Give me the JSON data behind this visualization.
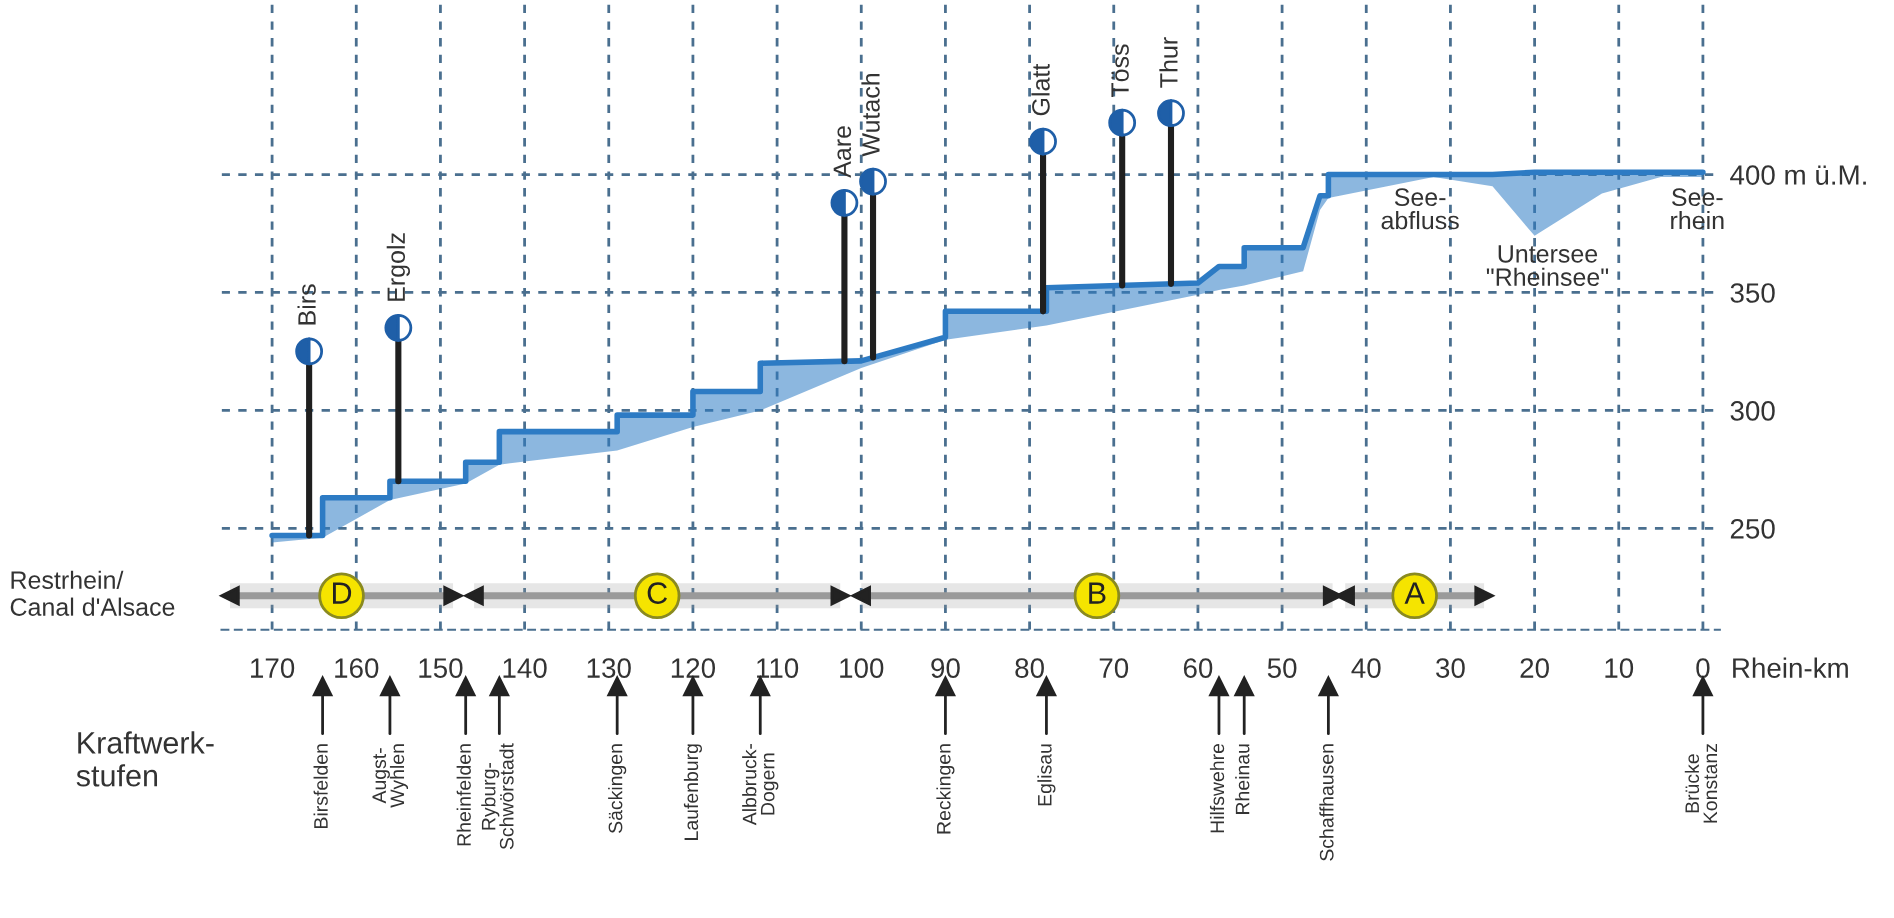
{
  "chart_data": {
    "type": "line",
    "x": [
      170,
      164,
      164,
      156,
      156,
      147,
      147,
      143,
      143,
      129,
      129,
      120,
      120,
      112,
      112,
      100,
      90,
      90,
      78,
      78,
      60,
      57.5,
      54.5,
      54.5,
      47.5,
      45.5,
      44.5,
      44.5,
      32,
      25,
      20,
      12,
      5,
      0
    ],
    "series": [
      {
        "color": "#2d7bc4",
        "values": [
          247,
          247,
          263,
          263,
          270,
          270,
          278,
          278,
          291,
          291,
          298,
          298,
          308,
          308,
          320,
          321,
          331,
          342,
          342,
          352,
          354,
          361,
          361,
          369,
          369,
          391,
          391,
          400,
          400,
          400,
          401,
          401,
          401,
          401
        ],
        "lower": [
          244,
          246,
          246,
          262,
          262,
          269,
          269,
          277,
          277,
          283,
          283,
          293,
          293,
          300,
          300,
          318,
          330,
          330,
          336,
          336,
          349,
          351,
          353,
          353,
          359,
          385,
          390,
          390,
          399,
          395,
          374,
          392,
          399,
          399
        ],
        "upper": [
          247,
          247,
          263,
          263,
          270,
          270,
          278,
          278,
          291,
          291,
          298,
          298,
          308,
          308,
          320,
          321,
          331,
          342,
          342,
          352,
          354,
          361,
          361,
          369,
          369,
          391,
          391,
          400,
          400,
          400,
          401,
          401,
          401,
          401
        ]
      },
      {
        "type": "lollipop",
        "name": "Birs",
        "color": "#1f5fa8",
        "marker": "circle",
        "x": [
          165.6
        ],
        "values": [
          325
        ]
      },
      {
        "type": "lollipop",
        "name": "Ergolz",
        "color": "#1f5fa8",
        "marker": "circle",
        "x": [
          155
        ],
        "values": [
          335
        ]
      },
      {
        "type": "lollipop",
        "name": "Aare",
        "color": "#1f5fa8",
        "marker": "circle",
        "x": [
          102
        ],
        "values": [
          388
        ]
      },
      {
        "type": "lollipop",
        "name": "Wutach",
        "color": "#1f5fa8",
        "marker": "circle",
        "x": [
          98.6
        ],
        "values": [
          397
        ]
      },
      {
        "type": "lollipop",
        "name": "Glatt",
        "color": "#1f5fa8",
        "marker": "circle",
        "x": [
          78.4
        ],
        "values": [
          414
        ]
      },
      {
        "type": "lollipop",
        "name": "Töss",
        "color": "#1f5fa8",
        "marker": "circle",
        "x": [
          69
        ],
        "values": [
          422
        ]
      },
      {
        "type": "lollipop",
        "name": "Thur",
        "color": "#1f5fa8",
        "marker": "circle",
        "x": [
          63.2
        ],
        "values": [
          426
        ]
      }
    ],
    "xlabel": "Rhein-km",
    "xlim": [
      176,
      -2
    ],
    "xticks": [
      170,
      160,
      150,
      140,
      130,
      120,
      110,
      100,
      90,
      80,
      70,
      60,
      50,
      40,
      30,
      20,
      10,
      0
    ],
    "ylim": [
      207,
      474
    ],
    "yticks": [
      250,
      300,
      350,
      {
        "value": 400,
        "label": "400 m ü.M."
      }
    ],
    "grid": true,
    "bands": [
      {
        "axis": "x",
        "from": 175,
        "to": 148.5,
        "label": "D",
        "color": "#9a9a9a"
      },
      {
        "axis": "x",
        "from": 146,
        "to": 102.5,
        "label": "C",
        "color": "#9a9a9a"
      },
      {
        "axis": "x",
        "from": 100,
        "to": 44,
        "label": "B",
        "color": "#9a9a9a"
      },
      {
        "axis": "x",
        "from": 42.5,
        "to": 26,
        "label": "A",
        "color": "#9a9a9a"
      }
    ],
    "annotations": [
      "Restrhein/\nCanal d'Alsace",
      "Kraftwerk-\nstufen",
      "See-\nabfluss",
      "Untersee\n\"Rheinsee\"",
      "See-\nrhein",
      {
        "text": "Birsfelden",
        "x": 164
      },
      {
        "text": "Augst-\nWyhlen",
        "x": 156
      },
      {
        "text": "Rheinfelden",
        "x": 147
      },
      {
        "text": "Ryburg-\nSchwörstadt",
        "x": 143
      },
      {
        "text": "Säckingen",
        "x": 129
      },
      {
        "text": "Laufenburg",
        "x": 120
      },
      {
        "text": "Albbruck-\nDogern",
        "x": 112
      },
      {
        "text": "Reckingen",
        "x": 90
      },
      {
        "text": "Eglisau",
        "x": 78
      },
      {
        "text": "Hilfswehre",
        "x": 57.5
      },
      {
        "text": "Rheinau",
        "x": 54.5
      },
      {
        "text": "Schaffhausen",
        "x": 44.5
      },
      {
        "text": "Brücke\nKonstanz",
        "x": 0
      }
    ]
  }
}
